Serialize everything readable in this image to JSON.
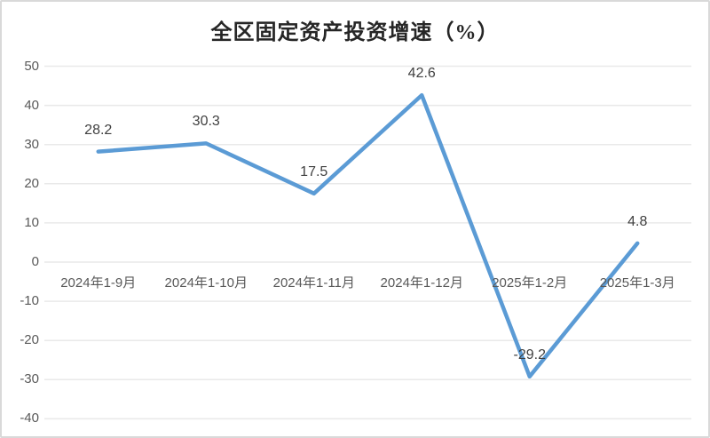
{
  "chart_data": {
    "type": "line",
    "title": "全区固定资产投资增速（%）",
    "categories": [
      "2024年1-9月",
      "2024年1-10月",
      "2024年1-11月",
      "2024年1-12月",
      "2025年1-2月",
      "2025年1-3月"
    ],
    "values": [
      28.2,
      30.3,
      17.5,
      42.6,
      -29.2,
      4.8
    ],
    "data_labels": [
      "28.2",
      "30.3",
      "17.5",
      "42.6",
      "-29.2",
      "4.8"
    ],
    "yticks": [
      50,
      40,
      30,
      20,
      10,
      0,
      -10,
      -20,
      -30,
      -40
    ],
    "ylim": [
      -40,
      50
    ],
    "grid": true,
    "legend": "none",
    "xlabel": "",
    "ylabel": "",
    "colors": {
      "line": "#5B9BD5",
      "grid": "#E9E9E9",
      "axis_labels": "#595959",
      "data_labels": "#404040",
      "title": "#262626",
      "border": "#D9D9D9",
      "background": "#FFFFFF"
    }
  }
}
